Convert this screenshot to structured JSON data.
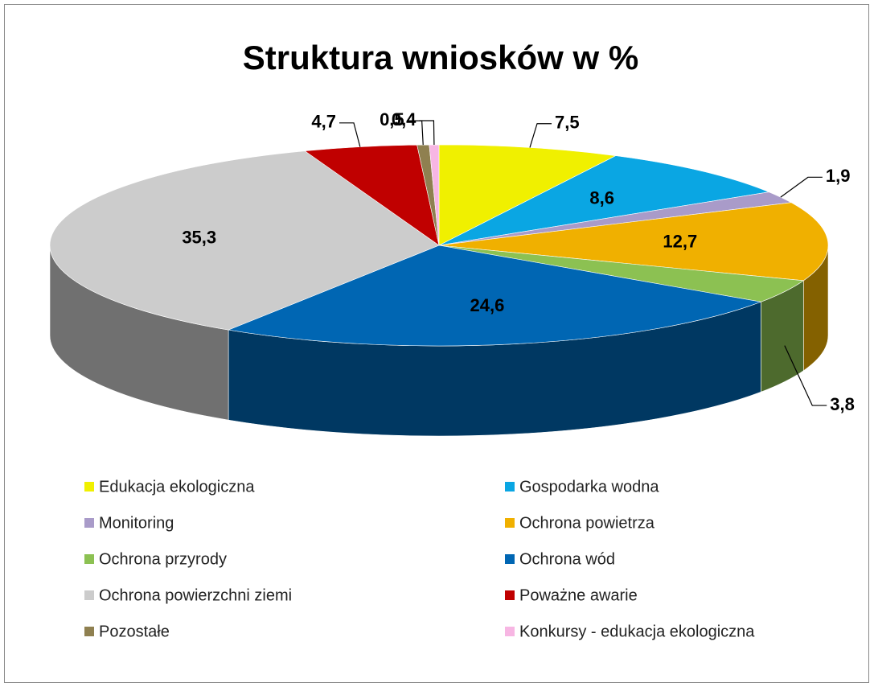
{
  "chart_data": {
    "type": "pie3d",
    "title": "Struktura wniosków w %",
    "categories": [
      "Edukacja ekologiczna",
      "Gospodarka wodna",
      "Monitoring",
      "Ochrona powietrza",
      "Ochrona przyrody",
      "Ochrona wód",
      "Ochrona powierzchni ziemi",
      "Poważne awarie",
      "Pozostałe",
      "Konkursy - edukacja ekologiczna"
    ],
    "values": [
      7.5,
      8.6,
      1.9,
      12.7,
      3.8,
      24.6,
      35.3,
      4.7,
      0.5,
      0.4
    ],
    "value_labels": [
      "7,5",
      "8,6",
      "1,9",
      "12,7",
      "3,8",
      "24,6",
      "35,3",
      "4,7",
      "0,5",
      "0,4"
    ],
    "colors": [
      "#f0f000",
      "#0aa6e3",
      "#a99bc9",
      "#f0b000",
      "#8cc152",
      "#0066b3",
      "#cccccc",
      "#c00000",
      "#8f8050",
      "#f7b6e3"
    ],
    "legend": "bottom"
  }
}
